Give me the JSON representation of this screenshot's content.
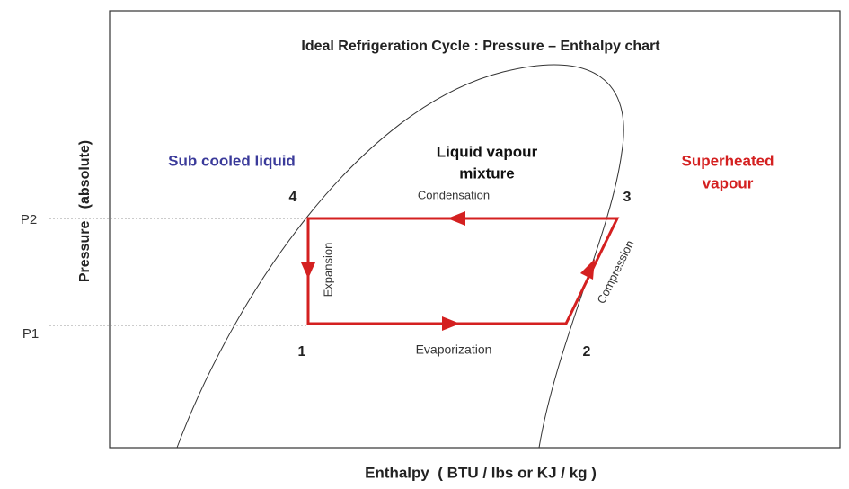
{
  "title": "Ideal Refrigeration Cycle  : Pressure – Enthalpy chart",
  "regions": {
    "subcooled": "Sub cooled liquid",
    "mixture": [
      "Liquid vapour",
      "mixture"
    ],
    "superheated": [
      "Superheated",
      "vapour"
    ]
  },
  "processes": {
    "condensation": "Condensation",
    "expansion": "Expansion",
    "evaporization": "Evaporization",
    "compression": "Compression"
  },
  "points": [
    "1",
    "2",
    "3",
    "4"
  ],
  "pressures": {
    "p1": "P1",
    "p2": "P2"
  },
  "y_axis_label": "Pressure   (absolute)",
  "x_axis_label": "Enthalpy  ( BTU / lbs or KJ / kg )"
}
